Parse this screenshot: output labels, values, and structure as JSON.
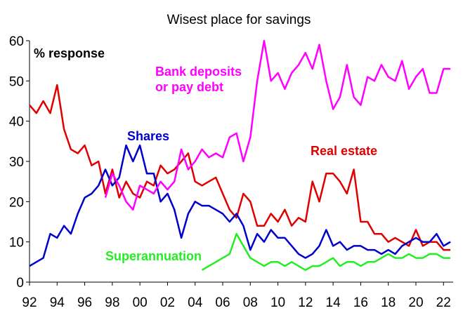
{
  "chart_data": {
    "type": "line",
    "title": "Wisest place for savings",
    "annotation": "% response",
    "x": [
      1992,
      1992.5,
      1993,
      1993.5,
      1994,
      1994.5,
      1995,
      1995.5,
      1996,
      1996.5,
      1997,
      1997.5,
      1998,
      1998.5,
      1999,
      1999.5,
      2000,
      2000.5,
      2001,
      2001.5,
      2002,
      2002.5,
      2003,
      2003.5,
      2004,
      2004.5,
      2005,
      2005.5,
      2006,
      2006.5,
      2007,
      2007.5,
      2008,
      2008.5,
      2009,
      2009.5,
      2010,
      2010.5,
      2011,
      2011.5,
      2012,
      2012.5,
      2013,
      2013.5,
      2014,
      2014.5,
      2015,
      2015.5,
      2016,
      2016.5,
      2017,
      2017.5,
      2018,
      2018.5,
      2019,
      2019.5,
      2020,
      2020.5,
      2021,
      2021.5,
      2022,
      2022.5
    ],
    "series": [
      {
        "name": "Real estate",
        "color": "#e00000",
        "values": [
          44,
          42,
          45,
          42,
          49,
          38,
          33,
          32,
          34,
          29,
          30,
          22,
          28,
          21,
          25,
          22,
          21,
          25,
          24,
          29,
          27,
          28,
          30,
          32,
          25,
          24,
          25,
          26,
          22,
          18,
          16,
          22,
          20,
          14,
          14,
          17,
          15,
          18,
          14,
          16,
          15,
          25,
          20,
          27,
          27,
          25,
          22,
          28,
          15,
          15,
          12,
          12,
          10,
          11,
          10,
          9,
          13,
          9,
          10,
          10,
          8,
          8
        ]
      },
      {
        "name": "Shares",
        "color": "#0000cc",
        "values": [
          4,
          5,
          6,
          12,
          11,
          14,
          12,
          17,
          21,
          22,
          24,
          28,
          24,
          26,
          34,
          30,
          34,
          27,
          27,
          20,
          22,
          18,
          11,
          17,
          20,
          19,
          19,
          18,
          17,
          15,
          17,
          14,
          8,
          12,
          10,
          13,
          11,
          11,
          9,
          7,
          6,
          7,
          9,
          13,
          9,
          10,
          8,
          9,
          9,
          8,
          8,
          7,
          8,
          7,
          9,
          10,
          11,
          10,
          10,
          12,
          9,
          10
        ]
      },
      {
        "name": "Bank deposits or pay debt",
        "color": "#ff00ff",
        "values": [
          null,
          null,
          null,
          null,
          null,
          null,
          null,
          null,
          null,
          null,
          null,
          21,
          27,
          24,
          20,
          18,
          24,
          23,
          22,
          25,
          23,
          25,
          33,
          28,
          30,
          33,
          31,
          32,
          31,
          36,
          37,
          30,
          36,
          50,
          60,
          50,
          52,
          48,
          52,
          54,
          57,
          53,
          59,
          50,
          43,
          46,
          54,
          46,
          44,
          51,
          50,
          54,
          51,
          50,
          55,
          48,
          51,
          53,
          47,
          47,
          53,
          53
        ]
      },
      {
        "name": "Superannuation",
        "color": "#22ee22",
        "values": [
          null,
          null,
          null,
          null,
          null,
          null,
          null,
          null,
          null,
          null,
          null,
          null,
          null,
          null,
          null,
          null,
          null,
          null,
          null,
          null,
          null,
          null,
          null,
          null,
          null,
          3,
          4,
          5,
          6,
          7,
          12,
          9,
          6,
          5,
          4,
          5,
          5,
          4,
          5,
          4,
          3,
          4,
          4,
          5,
          6,
          4,
          5,
          5,
          4,
          5,
          5,
          6,
          7,
          6,
          6,
          7,
          6,
          6,
          7,
          7,
          6,
          6
        ]
      }
    ],
    "xlim": [
      1992,
      2022.7
    ],
    "xticks": [
      {
        "value": 1992,
        "label": "92"
      },
      {
        "value": 1994,
        "label": "94"
      },
      {
        "value": 1996,
        "label": "96"
      },
      {
        "value": 1998,
        "label": "98"
      },
      {
        "value": 2000,
        "label": "00"
      },
      {
        "value": 2002,
        "label": "02"
      },
      {
        "value": 2004,
        "label": "04"
      },
      {
        "value": 2006,
        "label": "06"
      },
      {
        "value": 2008,
        "label": "08"
      },
      {
        "value": 2010,
        "label": "10"
      },
      {
        "value": 2012,
        "label": "12"
      },
      {
        "value": 2014,
        "label": "14"
      },
      {
        "value": 2016,
        "label": "16"
      },
      {
        "value": 2018,
        "label": "18"
      },
      {
        "value": 2020,
        "label": "20"
      },
      {
        "value": 2022,
        "label": "22"
      }
    ],
    "ylim": [
      0,
      60
    ],
    "yticks": [
      0,
      10,
      20,
      30,
      40,
      50,
      60
    ],
    "grid": false
  }
}
